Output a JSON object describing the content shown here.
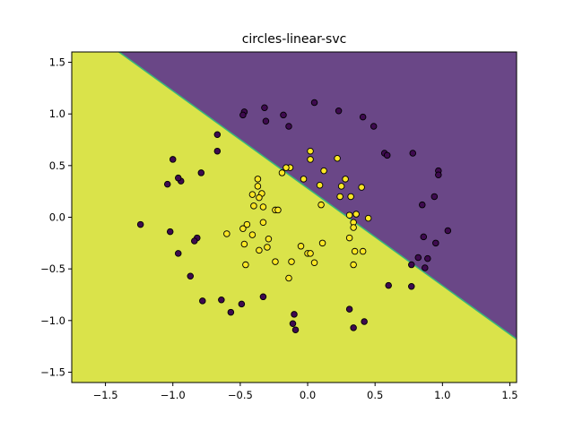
{
  "chart_data": {
    "type": "scatter",
    "title": "circles-linear-svc",
    "xlabel": "",
    "ylabel": "",
    "xlim": [
      -1.75,
      1.55
    ],
    "ylim": [
      -1.6,
      1.6
    ],
    "xticks": [
      -1.5,
      -1.0,
      -0.5,
      0.0,
      0.5,
      1.0,
      1.5
    ],
    "xtick_labels": [
      "−1.5",
      "−1.0",
      "−0.5",
      "0.0",
      "0.5",
      "1.0",
      "1.5"
    ],
    "yticks": [
      -1.5,
      -1.0,
      -0.5,
      0.0,
      0.5,
      1.0,
      1.5
    ],
    "ytick_labels": [
      "−1.5",
      "−1.0",
      "−0.5",
      "0.0",
      "0.5",
      "1.0",
      "1.5"
    ],
    "grid": false,
    "decision_boundary": {
      "description": "linear boundary",
      "points": [
        [
          -1.4,
          1.6
        ],
        [
          1.55,
          -1.18
        ]
      ],
      "region_colors": {
        "class_0": "#6a4787",
        "class_1": "#dae34a"
      },
      "boundary_color": "#38b57a"
    },
    "point_colors": {
      "class_0": "#3e0a4f",
      "class_1": "#fde725"
    },
    "series": [
      {
        "name": "",
        "class": 0,
        "points": [
          [
            -0.47,
            1.02
          ],
          [
            -0.48,
            0.99
          ],
          [
            -0.32,
            1.06
          ],
          [
            -0.31,
            0.93
          ],
          [
            -0.18,
            0.99
          ],
          [
            -0.14,
            0.88
          ],
          [
            0.05,
            1.11
          ],
          [
            0.23,
            1.03
          ],
          [
            0.41,
            0.97
          ],
          [
            0.49,
            0.88
          ],
          [
            0.57,
            0.62
          ],
          [
            0.59,
            0.6
          ],
          [
            0.78,
            0.62
          ],
          [
            0.97,
            0.45
          ],
          [
            0.97,
            0.41
          ],
          [
            0.85,
            0.12
          ],
          [
            0.94,
            0.2
          ],
          [
            1.04,
            -0.13
          ],
          [
            0.95,
            -0.25
          ],
          [
            0.86,
            -0.19
          ],
          [
            0.82,
            -0.39
          ],
          [
            0.89,
            -0.4
          ],
          [
            0.77,
            -0.46
          ],
          [
            0.87,
            -0.49
          ],
          [
            0.77,
            -0.67
          ],
          [
            0.6,
            -0.66
          ],
          [
            0.31,
            -0.89
          ],
          [
            0.42,
            -1.01
          ],
          [
            0.34,
            -1.07
          ],
          [
            -0.1,
            -0.94
          ],
          [
            -0.11,
            -1.03
          ],
          [
            -0.09,
            -1.09
          ],
          [
            -0.33,
            -0.77
          ],
          [
            -0.49,
            -0.84
          ],
          [
            -0.57,
            -0.92
          ],
          [
            -0.64,
            -0.8
          ],
          [
            -0.78,
            -0.81
          ],
          [
            -0.87,
            -0.57
          ],
          [
            -0.82,
            -0.2
          ],
          [
            -0.84,
            -0.23
          ],
          [
            -0.96,
            -0.35
          ],
          [
            -1.02,
            -0.14
          ],
          [
            -1.24,
            -0.07
          ],
          [
            -1.04,
            0.32
          ],
          [
            -0.94,
            0.35
          ],
          [
            -0.96,
            0.38
          ],
          [
            -1.0,
            0.56
          ],
          [
            -0.79,
            0.43
          ],
          [
            -0.67,
            0.64
          ],
          [
            -0.67,
            0.8
          ]
        ]
      },
      {
        "name": "",
        "class": 1,
        "points": [
          [
            0.02,
            0.64
          ],
          [
            0.02,
            0.56
          ],
          [
            -0.13,
            0.48
          ],
          [
            -0.16,
            0.48
          ],
          [
            -0.19,
            0.43
          ],
          [
            0.22,
            0.57
          ],
          [
            0.12,
            0.45
          ],
          [
            -0.03,
            0.37
          ],
          [
            0.09,
            0.31
          ],
          [
            0.28,
            0.37
          ],
          [
            0.25,
            0.3
          ],
          [
            0.4,
            0.29
          ],
          [
            0.24,
            0.2
          ],
          [
            0.32,
            0.2
          ],
          [
            0.1,
            0.12
          ],
          [
            -0.37,
            0.37
          ],
          [
            -0.37,
            0.3
          ],
          [
            -0.34,
            0.23
          ],
          [
            -0.41,
            0.22
          ],
          [
            -0.36,
            0.19
          ],
          [
            -0.4,
            0.11
          ],
          [
            -0.33,
            0.1
          ],
          [
            -0.24,
            0.07
          ],
          [
            -0.22,
            0.07
          ],
          [
            0.31,
            0.02
          ],
          [
            0.36,
            0.03
          ],
          [
            0.45,
            -0.01
          ],
          [
            0.34,
            -0.05
          ],
          [
            0.34,
            -0.1
          ],
          [
            0.31,
            -0.2
          ],
          [
            -0.33,
            -0.05
          ],
          [
            -0.45,
            -0.07
          ],
          [
            -0.48,
            -0.11
          ],
          [
            -0.6,
            -0.16
          ],
          [
            -0.41,
            -0.17
          ],
          [
            -0.29,
            -0.21
          ],
          [
            -0.3,
            -0.29
          ],
          [
            -0.47,
            -0.26
          ],
          [
            -0.36,
            -0.32
          ],
          [
            -0.24,
            -0.43
          ],
          [
            -0.46,
            -0.46
          ],
          [
            -0.05,
            -0.28
          ],
          [
            0.11,
            -0.25
          ],
          [
            0.0,
            -0.35
          ],
          [
            0.02,
            -0.35
          ],
          [
            0.05,
            -0.44
          ],
          [
            -0.12,
            -0.43
          ],
          [
            0.35,
            -0.33
          ],
          [
            0.41,
            -0.33
          ],
          [
            0.34,
            -0.46
          ],
          [
            -0.14,
            -0.59
          ]
        ]
      }
    ]
  }
}
